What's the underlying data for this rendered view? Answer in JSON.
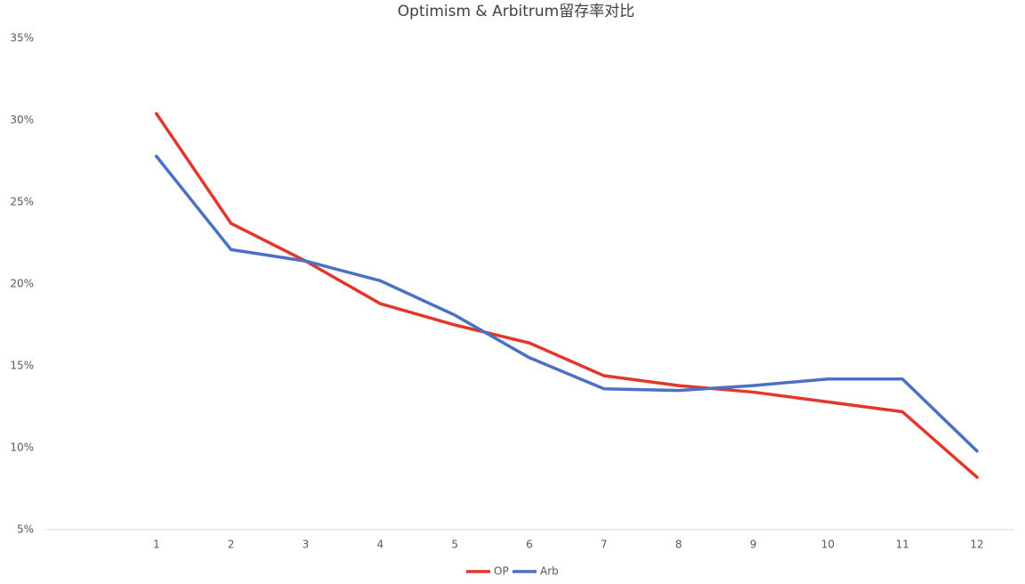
{
  "chart_data": {
    "type": "line",
    "title": "Optimism & Arbitrum留存率对比",
    "categories": [
      null,
      "1",
      "2",
      "3",
      "4",
      "5",
      "6",
      "7",
      "8",
      "9",
      "10",
      "11",
      "12"
    ],
    "series": [
      {
        "name": "OP",
        "color": "#e2372b",
        "values": [
          null,
          30.4,
          23.7,
          21.4,
          18.8,
          17.5,
          16.4,
          14.4,
          13.8,
          13.4,
          12.8,
          12.2,
          8.2
        ]
      },
      {
        "name": "Arb",
        "color": "#4a71c3",
        "values": [
          null,
          27.8,
          22.1,
          21.4,
          20.2,
          18.1,
          15.5,
          13.6,
          13.5,
          13.8,
          14.2,
          14.2,
          9.8
        ]
      }
    ],
    "ylim": [
      5,
      35
    ],
    "yticks": [
      {
        "value": 5,
        "label": "5%"
      },
      {
        "value": 10,
        "label": "10%"
      },
      {
        "value": 15,
        "label": "15%"
      },
      {
        "value": 20,
        "label": "20%"
      },
      {
        "value": 25,
        "label": "25%"
      },
      {
        "value": 30,
        "label": "30%"
      },
      {
        "value": 35,
        "label": "35%"
      }
    ],
    "grid": false,
    "legend": "bottom"
  }
}
